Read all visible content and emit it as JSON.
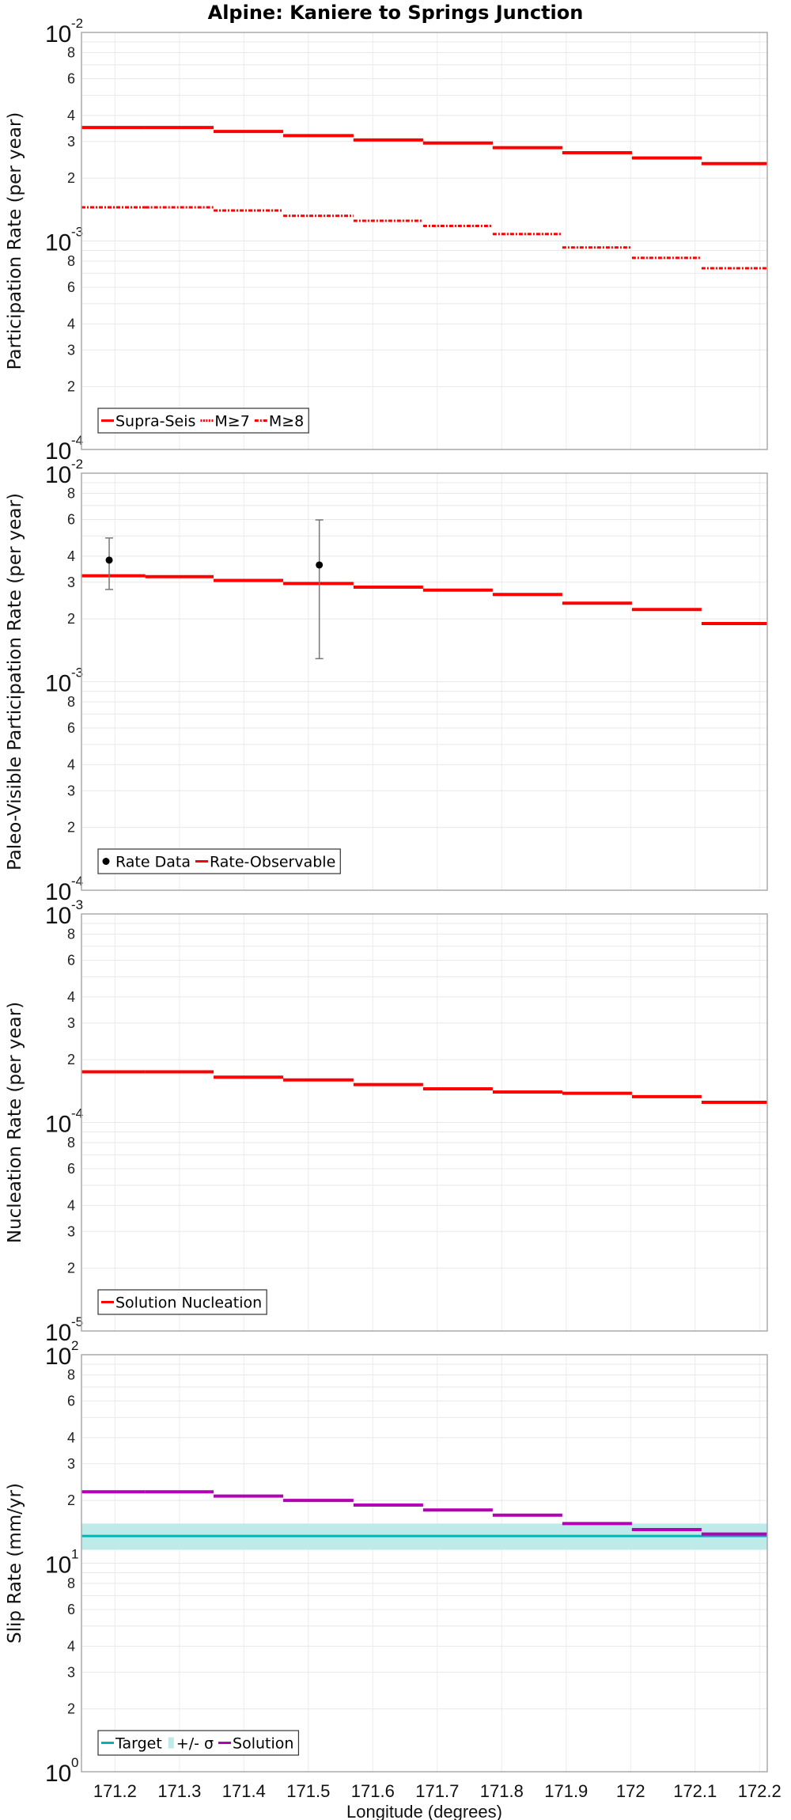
{
  "title": "Alpine: Kaniere to Springs Junction",
  "chart_data": [
    {
      "type": "line",
      "ylabel": "Participation Rate (per year)",
      "yscale": "log",
      "ylim": [
        0.0001,
        0.01
      ],
      "x_edges": [
        171.148,
        171.247,
        171.353,
        171.461,
        171.57,
        171.678,
        171.786,
        171.894,
        172.002,
        172.11,
        172.212
      ],
      "series": [
        {
          "name": "Supra-Seis",
          "color": "#ff0000",
          "style": "solid",
          "values": [
            0.0035,
            0.0035,
            0.00335,
            0.0032,
            0.00305,
            0.00295,
            0.0028,
            0.00265,
            0.0025,
            0.00235
          ]
        },
        {
          "name": "M≥7",
          "color": "#ff0000",
          "style": "dotted",
          "values": [
            0.0035,
            0.0035,
            0.00335,
            0.0032,
            0.00305,
            0.00295,
            0.0028,
            0.00265,
            0.0025,
            0.00235
          ]
        },
        {
          "name": "M≥8",
          "color": "#ff0000",
          "style": "dashdot",
          "values": [
            0.00145,
            0.00145,
            0.0014,
            0.00132,
            0.00125,
            0.00118,
            0.00108,
            0.00093,
            0.00083,
            0.00074
          ]
        }
      ],
      "legend": [
        "Supra-Seis",
        "M≥7",
        "M≥8"
      ]
    },
    {
      "type": "line",
      "ylabel": "Paleo-Visible Participation Rate (per year)",
      "yscale": "log",
      "ylim": [
        0.0001,
        0.01
      ],
      "x_edges": [
        171.148,
        171.247,
        171.353,
        171.461,
        171.57,
        171.678,
        171.786,
        171.894,
        172.002,
        172.11,
        172.212
      ],
      "series": [
        {
          "name": "Rate-Observable",
          "color": "#ff0000",
          "style": "solid",
          "values": [
            0.00322,
            0.00319,
            0.00306,
            0.00296,
            0.00284,
            0.00275,
            0.00262,
            0.00238,
            0.00222,
            0.0019
          ]
        }
      ],
      "points": {
        "name": "Rate Data",
        "color": "#000000",
        "data": [
          {
            "x": 171.191,
            "y": 0.00383,
            "low": 0.00277,
            "high": 0.00489
          },
          {
            "x": 171.517,
            "y": 0.00363,
            "low": 0.00129,
            "high": 0.00597
          }
        ]
      },
      "legend": [
        "Rate Data",
        "Rate-Observable"
      ]
    },
    {
      "type": "line",
      "ylabel": "Nucleation Rate (per year)",
      "yscale": "log",
      "ylim": [
        1e-05,
        0.001
      ],
      "x_edges": [
        171.148,
        171.247,
        171.353,
        171.461,
        171.57,
        171.678,
        171.786,
        171.894,
        172.002,
        172.11,
        172.212
      ],
      "series": [
        {
          "name": "Solution Nucleation",
          "color": "#ff0000",
          "style": "solid",
          "values": [
            0.000175,
            0.000175,
            0.000165,
            0.00016,
            0.000152,
            0.000145,
            0.00014,
            0.000138,
            0.000133,
            0.000125
          ]
        }
      ],
      "legend": [
        "Solution Nucleation"
      ]
    },
    {
      "type": "line",
      "ylabel": "Slip Rate (mm/yr)",
      "xlabel": "Longitude (degrees)",
      "yscale": "log",
      "ylim": [
        1,
        100
      ],
      "x_edges": [
        171.148,
        171.247,
        171.353,
        171.461,
        171.57,
        171.678,
        171.786,
        171.894,
        172.002,
        172.11,
        172.212
      ],
      "target": {
        "name": "Target",
        "color": "#00b4b4",
        "value": 13.5
      },
      "sigma": {
        "name": "+/- σ",
        "color": "#bfeaea",
        "low": 11.6,
        "high": 15.5
      },
      "series": [
        {
          "name": "Solution",
          "color": "#b400b4",
          "style": "solid",
          "values": [
            22,
            22,
            21,
            20,
            19,
            18,
            17,
            15.5,
            14.5,
            13.8
          ]
        }
      ],
      "legend": [
        "Target",
        "+/- σ",
        "Solution"
      ]
    }
  ],
  "x_ticks": [
    "171.2",
    "171.3",
    "171.4",
    "171.5",
    "171.6",
    "171.7",
    "171.8",
    "171.9",
    "172",
    "172.1",
    "172.2"
  ],
  "x_tick_values": [
    171.2,
    171.3,
    171.4,
    171.5,
    171.6,
    171.7,
    171.8,
    171.9,
    172.0,
    172.1,
    172.2
  ],
  "xlabel": "Longitude (degrees)"
}
